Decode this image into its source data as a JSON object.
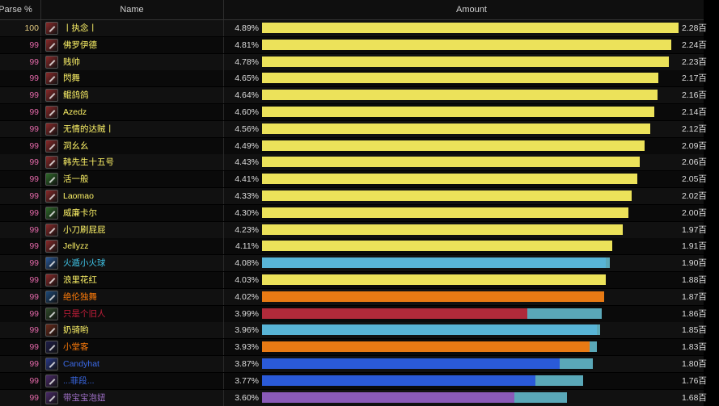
{
  "table": {
    "columns": {
      "parse": "Parse %",
      "name": "Name",
      "amount": "Amount"
    },
    "rows": [
      {
        "parse": "100",
        "name": "丨执念丨",
        "percent": "4.89%",
        "amount": "2.28百",
        "class_color": "#fff468",
        "icon": "rogue-class-icon",
        "icon_color": "#8b2a2a",
        "parse_color": "#e5cc80",
        "bar_color": "#ece25a",
        "bar_fraction": 0.99,
        "bar_ext": 0
      },
      {
        "parse": "99",
        "name": "佛罗伊德",
        "percent": "4.81%",
        "amount": "2.24百",
        "class_color": "#fff468",
        "icon": "rogue-class-icon",
        "icon_color": "#8b2a2a",
        "parse_color": "#e268a8",
        "bar_color": "#ece25a",
        "bar_fraction": 0.974,
        "bar_ext": 0
      },
      {
        "parse": "99",
        "name": "贱帅",
        "percent": "4.78%",
        "amount": "2.23百",
        "class_color": "#fff468",
        "icon": "rogue-class-icon",
        "icon_color": "#8b2a2a",
        "parse_color": "#e268a8",
        "bar_color": "#ece25a",
        "bar_fraction": 0.968,
        "bar_ext": 0
      },
      {
        "parse": "99",
        "name": "閃舞",
        "percent": "4.65%",
        "amount": "2.17百",
        "class_color": "#fff468",
        "icon": "rogue-class-icon",
        "icon_color": "#8b2a2a",
        "parse_color": "#e268a8",
        "bar_color": "#ece25a",
        "bar_fraction": 0.943,
        "bar_ext": 0
      },
      {
        "parse": "99",
        "name": "鲲鸽鸽",
        "percent": "4.64%",
        "amount": "2.16百",
        "class_color": "#fff468",
        "icon": "rogue-class-icon",
        "icon_color": "#8b2a2a",
        "parse_color": "#e268a8",
        "bar_color": "#ece25a",
        "bar_fraction": 0.941,
        "bar_ext": 0
      },
      {
        "parse": "99",
        "name": "Azedz",
        "percent": "4.60%",
        "amount": "2.14百",
        "class_color": "#fff468",
        "icon": "rogue-class-icon",
        "icon_color": "#8b2a2a",
        "parse_color": "#e268a8",
        "bar_color": "#ece25a",
        "bar_fraction": 0.932,
        "bar_ext": 0
      },
      {
        "parse": "99",
        "name": "无情的达贼丨",
        "percent": "4.56%",
        "amount": "2.12百",
        "class_color": "#fff468",
        "icon": "rogue-class-icon",
        "icon_color": "#8b2a2a",
        "parse_color": "#e268a8",
        "bar_color": "#ece25a",
        "bar_fraction": 0.924,
        "bar_ext": 0
      },
      {
        "parse": "99",
        "name": "洞幺幺",
        "percent": "4.49%",
        "amount": "2.09百",
        "class_color": "#fff468",
        "icon": "rogue-class-icon",
        "icon_color": "#8b2a2a",
        "parse_color": "#e268a8",
        "bar_color": "#ece25a",
        "bar_fraction": 0.91,
        "bar_ext": 0
      },
      {
        "parse": "99",
        "name": "韩先生十五号",
        "percent": "4.43%",
        "amount": "2.06百",
        "class_color": "#fff468",
        "icon": "rogue-class-icon",
        "icon_color": "#8b2a2a",
        "parse_color": "#e268a8",
        "bar_color": "#ece25a",
        "bar_fraction": 0.898,
        "bar_ext": 0
      },
      {
        "parse": "99",
        "name": "活一般",
        "percent": "4.41%",
        "amount": "2.05百",
        "class_color": "#fff468",
        "icon": "rogue-combat-icon",
        "icon_color": "#2f6a2a",
        "parse_color": "#e268a8",
        "bar_color": "#ece25a",
        "bar_fraction": 0.893,
        "bar_ext": 0
      },
      {
        "parse": "99",
        "name": "Laomao",
        "percent": "4.33%",
        "amount": "2.02百",
        "class_color": "#fff468",
        "icon": "rogue-class-icon",
        "icon_color": "#8b2a2a",
        "parse_color": "#e268a8",
        "bar_color": "#ece25a",
        "bar_fraction": 0.878,
        "bar_ext": 0
      },
      {
        "parse": "99",
        "name": "威廉卡尔",
        "percent": "4.30%",
        "amount": "2.00百",
        "class_color": "#fff468",
        "icon": "rogue-combat-icon",
        "icon_color": "#2f6a2a",
        "parse_color": "#e268a8",
        "bar_color": "#ece25a",
        "bar_fraction": 0.872,
        "bar_ext": 0
      },
      {
        "parse": "99",
        "name": "小刀刷屁屁",
        "percent": "4.23%",
        "amount": "1.97百",
        "class_color": "#fff468",
        "icon": "rogue-class-icon",
        "icon_color": "#8b2a2a",
        "parse_color": "#e268a8",
        "bar_color": "#ece25a",
        "bar_fraction": 0.857,
        "bar_ext": 0
      },
      {
        "parse": "99",
        "name": "Jellyzz",
        "percent": "4.11%",
        "amount": "1.91百",
        "class_color": "#fff468",
        "icon": "rogue-class-icon",
        "icon_color": "#8b2a2a",
        "parse_color": "#e268a8",
        "bar_color": "#ece25a",
        "bar_fraction": 0.832,
        "bar_ext": 0
      },
      {
        "parse": "99",
        "name": "火遁小火球",
        "percent": "4.08%",
        "amount": "1.90百",
        "class_color": "#40c7eb",
        "icon": "mage-frost-icon",
        "icon_color": "#2a5a9a",
        "parse_color": "#e268a8",
        "bar_color": "#58b4d6",
        "bar_fraction": 0.818,
        "bar_ext": 0.008
      },
      {
        "parse": "99",
        "name": "浪里花红",
        "percent": "4.03%",
        "amount": "1.88百",
        "class_color": "#fff468",
        "icon": "rogue-class-icon",
        "icon_color": "#8b2a2a",
        "parse_color": "#e268a8",
        "bar_color": "#ece25a",
        "bar_fraction": 0.817,
        "bar_ext": 0
      },
      {
        "parse": "99",
        "name": "绝伦独舞",
        "percent": "4.02%",
        "amount": "1.87百",
        "class_color": "#ff7c0a",
        "icon": "druid-icon",
        "icon_color": "#1e4a7a",
        "parse_color": "#e268a8",
        "bar_color": "#e87a14",
        "bar_fraction": 0.814,
        "bar_ext": 0
      },
      {
        "parse": "99",
        "name": "只是个旧人",
        "percent": "3.99%",
        "amount": "1.86百",
        "class_color": "#c41e3a",
        "icon": "death-knight-icon",
        "icon_color": "#2f4a2a",
        "parse_color": "#e268a8",
        "bar_color": "#b02a3a",
        "bar_fraction": 0.63,
        "bar_ext": 0.177
      },
      {
        "parse": "99",
        "name": "奶骑哟",
        "percent": "3.96%",
        "amount": "1.85百",
        "class_color": "#fff468",
        "icon": "paladin-flame-icon",
        "icon_color": "#6a2a1a",
        "parse_color": "#e268a8",
        "bar_color": "#58b4d6",
        "bar_fraction": 0.796,
        "bar_ext": 0.008
      },
      {
        "parse": "99",
        "name": "小堂客",
        "percent": "3.93%",
        "amount": "1.83百",
        "class_color": "#ff7c0a",
        "icon": "druid-icon",
        "icon_color": "#1e1e4a",
        "parse_color": "#e268a8",
        "bar_color": "#e87a14",
        "bar_fraction": 0.778,
        "bar_ext": 0.018
      },
      {
        "parse": "99",
        "name": "Candyhat",
        "percent": "3.87%",
        "amount": "1.80百",
        "class_color": "#3b6ae8",
        "icon": "shaman-icon",
        "icon_color": "#2a3a8a",
        "parse_color": "#e268a8",
        "bar_color": "#2a5ad8",
        "bar_fraction": 0.707,
        "bar_ext": 0.08
      },
      {
        "parse": "99",
        "name": "...菲段...",
        "percent": "3.77%",
        "amount": "1.76百",
        "class_color": "#3b6ae8",
        "icon": "shaman-icon",
        "icon_color": "#4a2a6a",
        "parse_color": "#e268a8",
        "bar_color": "#2a5ad8",
        "bar_fraction": 0.65,
        "bar_ext": 0.114
      },
      {
        "parse": "99",
        "name": "带宝宝泡妞",
        "percent": "3.60%",
        "amount": "1.68百",
        "class_color": "#a070c8",
        "icon": "warlock-icon",
        "icon_color": "#4a2a6a",
        "parse_color": "#e268a8",
        "bar_color": "#8a5ab8",
        "bar_fraction": 0.6,
        "bar_ext": 0.125
      }
    ]
  }
}
